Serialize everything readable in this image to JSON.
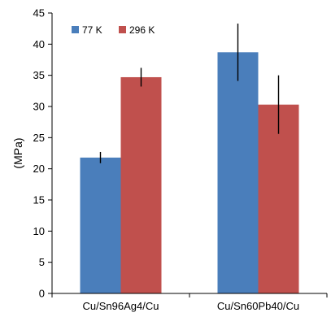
{
  "chart_data": {
    "type": "bar",
    "categories": [
      "Cu/Sn96Ag4/Cu",
      "Cu/Sn60Pb40/Cu"
    ],
    "series": [
      {
        "name": "77 K",
        "values": [
          21.8,
          38.7
        ],
        "errors": [
          0.9,
          4.6
        ],
        "color": "#4a7ebb"
      },
      {
        "name": "296 K",
        "values": [
          34.7,
          30.3
        ],
        "errors": [
          1.5,
          4.7
        ],
        "color": "#c0504d"
      }
    ],
    "title": "",
    "xlabel": "",
    "ylabel": "(MPa)",
    "ylim": [
      0,
      45
    ],
    "yticks": [
      "0",
      "5",
      "10",
      "15",
      "20",
      "25",
      "30",
      "35",
      "40",
      "45"
    ],
    "grid": false,
    "legend_position": "top-left"
  }
}
